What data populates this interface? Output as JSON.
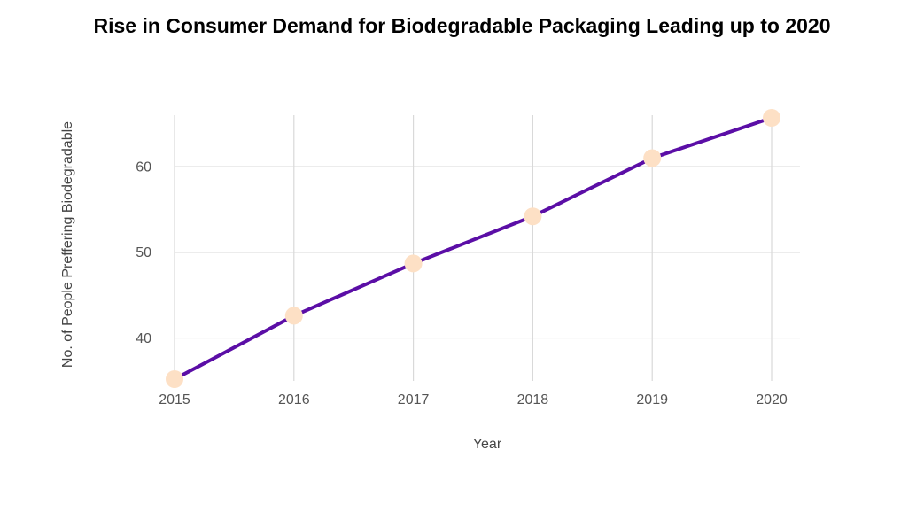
{
  "chart_data": {
    "type": "line",
    "title": "Rise in Consumer Demand for Biodegradable Packaging Leading up to 2020",
    "xlabel": "Year",
    "ylabel": "No. of People Preffering Biodegradable",
    "categories": [
      "2015",
      "2016",
      "2017",
      "2018",
      "2019",
      "2020"
    ],
    "series": [
      {
        "name": "No. of People Preffering Biodegradable",
        "values": [
          35.2,
          42.6,
          48.7,
          54.2,
          61.0,
          65.7
        ]
      }
    ],
    "yticks": [
      40,
      50,
      60
    ],
    "ylim": [
      35.2,
      65.7
    ],
    "grid": true,
    "colors": {
      "line": "#5b0ea6",
      "marker": "#fde0c5",
      "grid": "#d9d9d9"
    }
  }
}
